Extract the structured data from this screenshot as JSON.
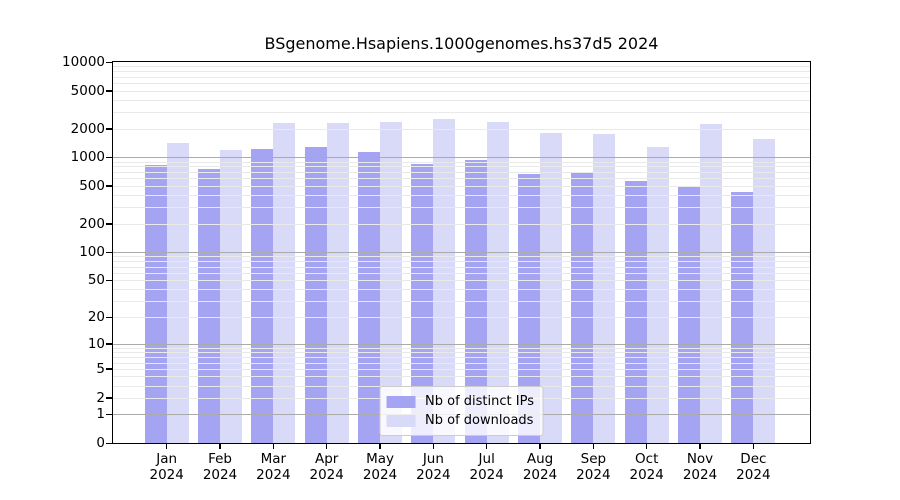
{
  "title": "BSgenome.Hsapiens.1000genomes.hs37d5 2024",
  "chart_data": {
    "type": "bar",
    "title": "BSgenome.Hsapiens.1000genomes.hs37d5 2024",
    "scale": "log1p",
    "categories": [
      "Jan 2024",
      "Feb 2024",
      "Mar 2024",
      "Apr 2024",
      "May 2024",
      "Jun 2024",
      "Jul 2024",
      "Aug 2024",
      "Sep 2024",
      "Oct 2024",
      "Nov 2024",
      "Dec 2024"
    ],
    "series": [
      {
        "name": "Nb of distinct IPs",
        "color": "#a4a4f2",
        "values": [
          820,
          760,
          1230,
          1270,
          1130,
          840,
          930,
          670,
          690,
          560,
          500,
          435
        ]
      },
      {
        "name": "Nb of downloads",
        "color": "#d9d9f8",
        "values": [
          1420,
          1190,
          2280,
          2300,
          2320,
          2540,
          2320,
          1790,
          1740,
          1280,
          2260,
          1550
        ]
      }
    ],
    "yticks": [
      0,
      1,
      2,
      5,
      10,
      20,
      50,
      100,
      200,
      500,
      1000,
      2000,
      5000,
      10000
    ],
    "ylim": [
      0,
      10000
    ],
    "xlabel": "",
    "ylabel": "",
    "grid": "both (minor gridlines drawn over bars)",
    "legend_position": "lower center inside plot",
    "colors": {
      "distinct_ips_bar": "#a4a4f2",
      "downloads_bar": "#d9d9f8",
      "major_grid": "#ababab",
      "minor_grid": "#e9e9e9",
      "axis": "#000000",
      "background": "#ffffff"
    }
  }
}
